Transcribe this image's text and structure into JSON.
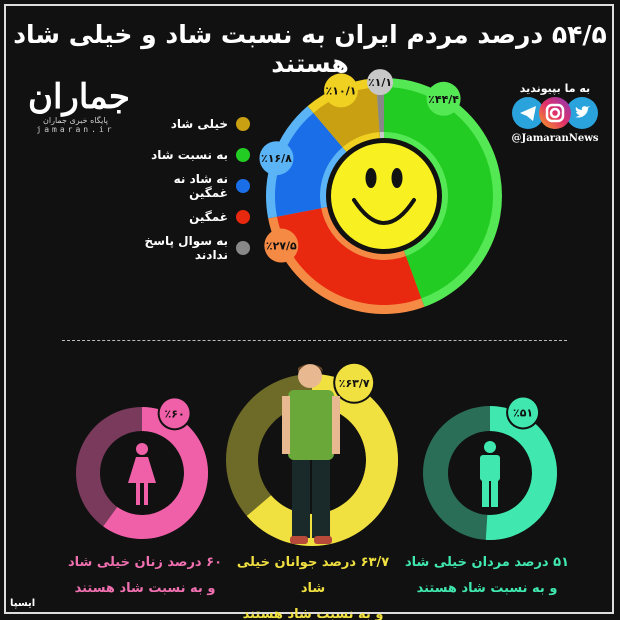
{
  "title": "۵۴/۵ درصد مردم ایران به نسبت شاد و خیلی شاد هستند",
  "logo": {
    "mark": "جماران",
    "subtitle": "پایگاه خبری جماران",
    "url": "jamaran.ir"
  },
  "social": {
    "join_label": "به ما بپیوندید",
    "handle": "@JamaranNews",
    "icons": [
      "telegram-icon",
      "instagram-icon",
      "twitter-icon"
    ]
  },
  "chart_data": [
    {
      "type": "pie",
      "legend_position": "left",
      "series": [
        {
          "name": "به نسبت شاد",
          "value": 44.4,
          "label": "٪۴۴/۴",
          "color": "#22cc22",
          "ring": "#55e855"
        },
        {
          "name": "غمگین",
          "value": 27.5,
          "label": "٪۲۷/۵",
          "color": "#e8280f",
          "ring": "#f58a45"
        },
        {
          "name": "نه شاد نه غمگین",
          "value": 16.8,
          "label": "٪۱۶/۸",
          "color": "#1a6ee8",
          "ring": "#5ab4f5"
        },
        {
          "name": "خیلی شاد",
          "value": 10.1,
          "label": "٪۱۰/۱",
          "color": "#c9a012",
          "ring": "#f0d020"
        },
        {
          "name": "به سوال پاسخ ندادند",
          "value": 1.1,
          "label": "٪۱/۱",
          "color": "#888888",
          "ring": "#c8c8c8"
        }
      ],
      "legend_order": [
        3,
        0,
        2,
        1,
        4
      ],
      "center_icon": "smiley-face-icon"
    },
    {
      "type": "donut",
      "items": [
        {
          "group": "women",
          "value": 60,
          "label": "٪۶۰",
          "color": "#f060a8",
          "track": "#7a3a5c",
          "icon": "female-icon",
          "caption": [
            "۶۰ درصد زنان خیلی شاد",
            "و به نسبت شاد هستند"
          ]
        },
        {
          "group": "youth",
          "value": 63.7,
          "label": "٪۶۳/۷",
          "color": "#f0e040",
          "track": "#6e6a28",
          "icon": "young-man-icon",
          "caption": [
            "۶۳/۷ درصد جوانان خیلی شاد",
            "و به نسبت شاد هستند"
          ]
        },
        {
          "group": "men",
          "value": 51,
          "label": "٪۵۱",
          "color": "#40e8b0",
          "track": "#2a6e58",
          "icon": "male-icon",
          "caption": [
            "۵۱ درصد مردان خیلی شاد",
            "و به نسبت شاد هستند"
          ]
        }
      ]
    }
  ],
  "source": "ایسپا"
}
